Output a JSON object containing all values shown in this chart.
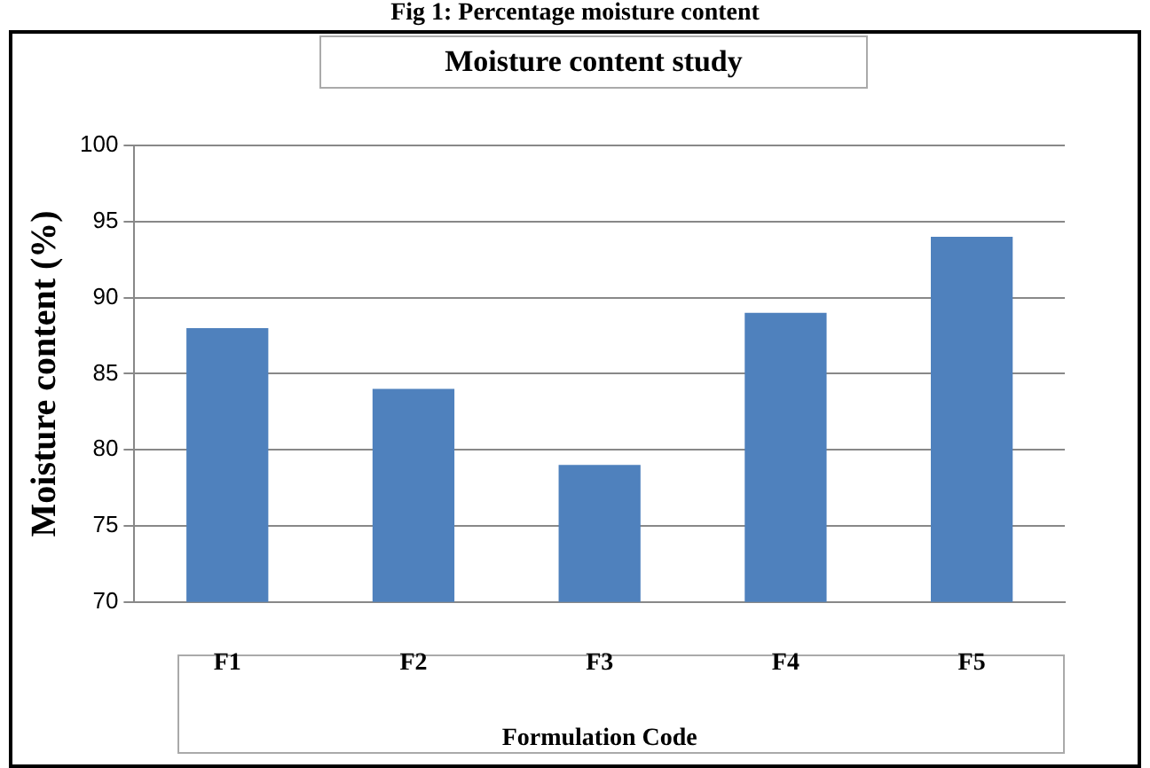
{
  "chart_data": {
    "type": "bar",
    "title": "Fig 1: Percentage moisture content",
    "subtitle": "Moisture content study",
    "xlabel": "Formulation Code",
    "ylabel": "Moisture content (%)",
    "categories": [
      "F1",
      "F2",
      "F3",
      "F4",
      "F5"
    ],
    "values": [
      88,
      84,
      79,
      89,
      94
    ],
    "color": "#4f81bd",
    "ylim": [
      70,
      100
    ],
    "yticks": [
      70,
      75,
      80,
      85,
      90,
      95,
      100
    ],
    "grid": "y",
    "legend": false
  }
}
